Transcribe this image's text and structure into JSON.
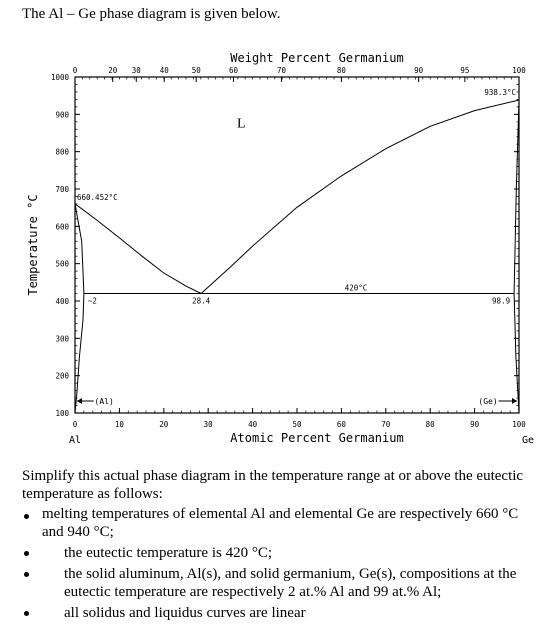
{
  "intro": "The Al – Ge phase diagram is given below.",
  "chart_data": {
    "type": "phase-diagram",
    "top_axis_title": "Weight Percent Germanium",
    "top_ticks": [
      "0",
      "20",
      "30",
      "40",
      "50",
      "60",
      "70",
      "80",
      "90",
      "95",
      "100"
    ],
    "top_tick_atpct": [
      0,
      8.5,
      13.8,
      20.1,
      27.3,
      35.7,
      46.5,
      60.0,
      77.4,
      87.8,
      100
    ],
    "bottom_axis_title": "Atomic Percent Germanium",
    "bottom_ticks": [
      "0",
      "10",
      "20",
      "30",
      "40",
      "50",
      "60",
      "70",
      "80",
      "90",
      "100"
    ],
    "ylabel": "Temperature °C",
    "y_ticks": [
      "100",
      "200",
      "300",
      "400",
      "500",
      "600",
      "700",
      "800",
      "900",
      "1000"
    ],
    "xlim": [
      0,
      100
    ],
    "ylim": [
      100,
      1000
    ],
    "end_left": "Al",
    "end_right": "Ge",
    "liquidus_left": [
      [
        0,
        660.452
      ],
      [
        5,
        616
      ],
      [
        10,
        569
      ],
      [
        15,
        521
      ],
      [
        20,
        475
      ],
      [
        25,
        440
      ],
      [
        28.4,
        420
      ]
    ],
    "liquidus_right": [
      [
        28.4,
        420
      ],
      [
        35,
        491
      ],
      [
        40,
        547
      ],
      [
        50,
        651
      ],
      [
        60,
        735
      ],
      [
        70,
        808
      ],
      [
        80,
        868
      ],
      [
        90,
        910
      ],
      [
        100,
        938.3
      ]
    ],
    "solvus_al": [
      [
        0,
        660.452
      ],
      [
        1.5,
        560
      ],
      [
        2,
        420
      ],
      [
        1.8,
        350
      ],
      [
        1.0,
        250
      ],
      [
        0.4,
        150
      ],
      [
        0,
        100
      ]
    ],
    "solvus_ge": [
      [
        100,
        938.3
      ],
      [
        99.4,
        700
      ],
      [
        98.9,
        420
      ],
      [
        99.3,
        250
      ],
      [
        100,
        100
      ]
    ],
    "eutectic": {
      "x_from": 2,
      "x_to": 98.9,
      "T": 420
    },
    "labels": {
      "liquid": "L",
      "al_melt": "660.452°C",
      "ge_melt": "938.3°C",
      "eutectic_T": "420°C",
      "eutectic_x": "28.4",
      "al_solub": "~2",
      "ge_solub": "98.9",
      "al_phase": "(Al)",
      "ge_phase": "(Ge)"
    }
  },
  "text": {
    "paragraph": "Simplify this actual phase diagram in the temperature range at or above the eutectic temperature as follows:",
    "bullets": [
      "melting temperatures of elemental Al and elemental Ge are respectively 660 °C and 940 °C;",
      "the eutectic temperature is 420 °C;",
      "the solid aluminum, Al(s), and solid germanium, Ge(s), compositions at the eutectic temperature are respectively 2 at.% Al and 99 at.% Al;",
      "all solidus and liquidus curves are linear"
    ]
  }
}
